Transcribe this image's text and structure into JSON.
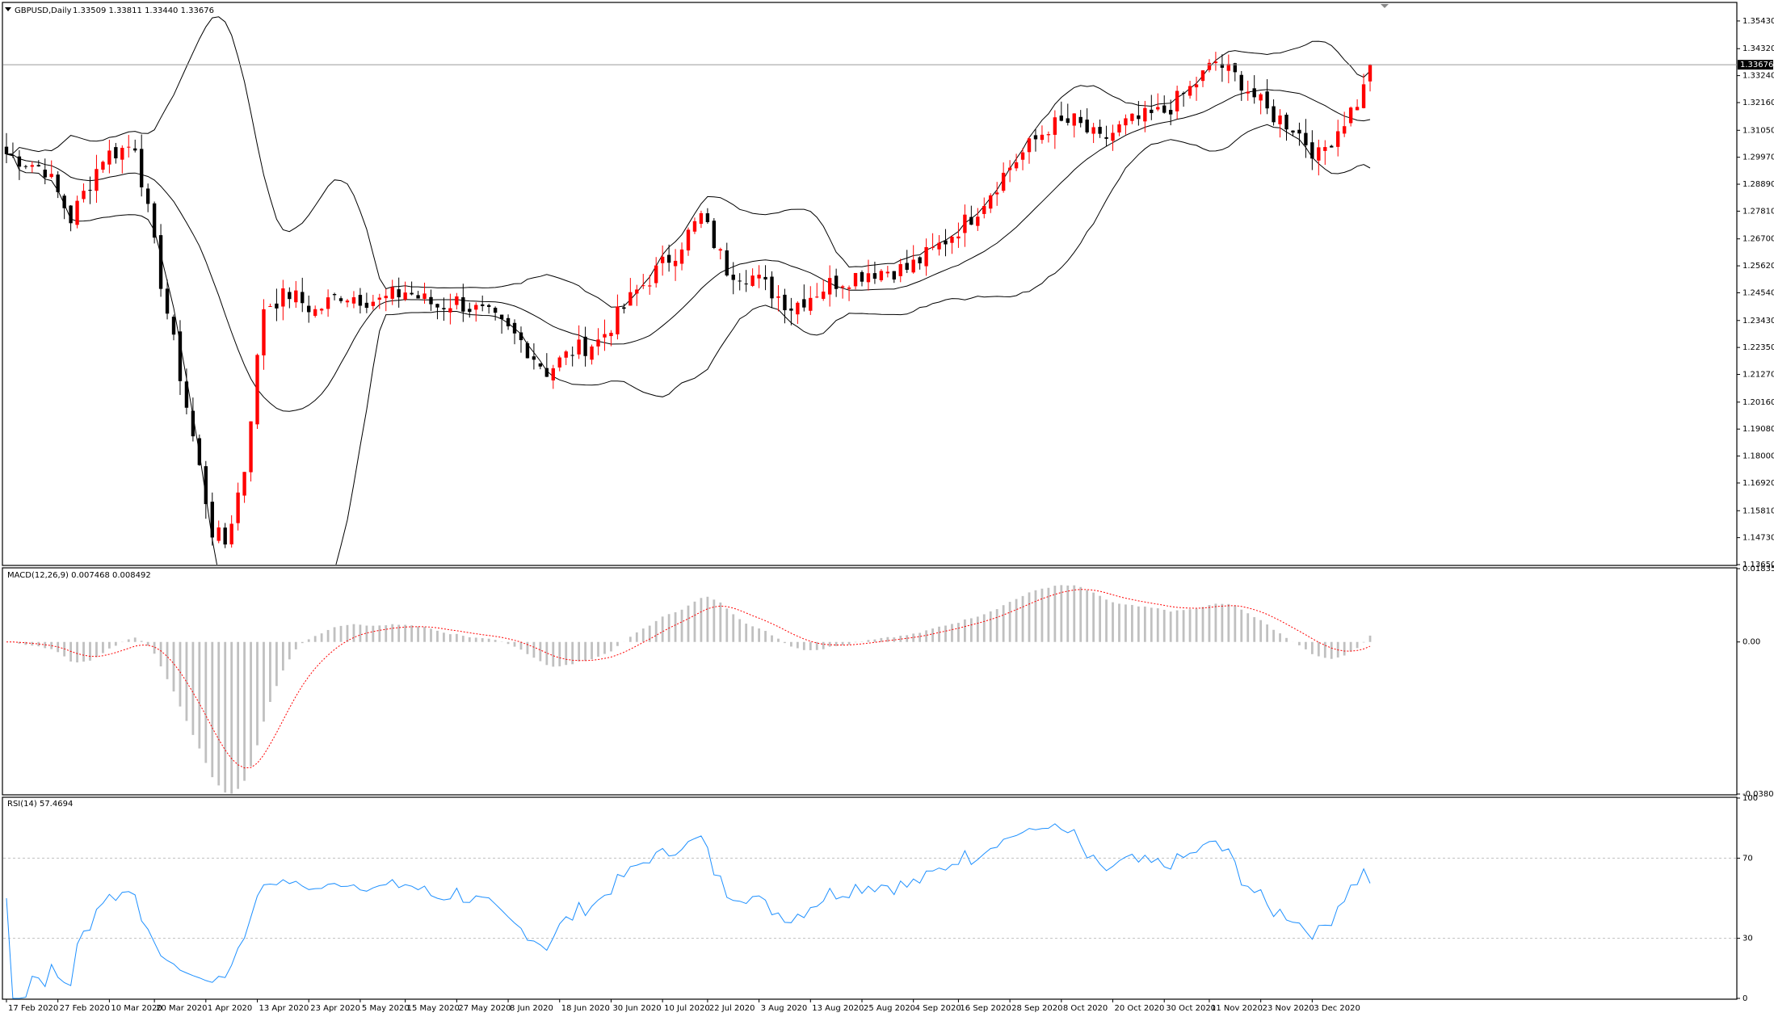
{
  "chart_data": [
    {
      "type": "candlestick",
      "title": "GBPUSD,Daily",
      "ohlc_header": "1.33509 1.33811 1.33440 1.33676",
      "current_price_label": "1.33676",
      "current_price": 1.33676,
      "ylim": [
        1.1365,
        1.3614
      ],
      "y_ticks": [
        "1.35430",
        "1.34320",
        "1.33240",
        "1.32160",
        "1.31050",
        "1.29970",
        "1.28890",
        "1.27810",
        "1.26700",
        "1.25620",
        "1.24540",
        "1.23430",
        "1.22350",
        "1.21270",
        "1.20160",
        "1.19080",
        "1.18000",
        "1.16920",
        "1.15810",
        "1.14730",
        "1.13650"
      ],
      "x_ticks": [
        "17 Feb 2020",
        "27 Feb 2020",
        "10 Mar 2020",
        "20 Mar 2020",
        "1 Apr 2020",
        "13 Apr 2020",
        "23 Apr 2020",
        "5 May 2020",
        "15 May 2020",
        "27 May 2020",
        "8 Jun 2020",
        "18 Jun 2020",
        "30 Jun 2020",
        "10 Jul 2020",
        "22 Jul 2020",
        "3 Aug 2020",
        "13 Aug 2020",
        "25 Aug 2020",
        "4 Sep 2020",
        "16 Sep 2020",
        "28 Sep 2020",
        "8 Oct 2020",
        "20 Oct 2020",
        "30 Oct 2020",
        "11 Nov 2020",
        "23 Nov 2020",
        "3 Dec 2020"
      ],
      "bars": 213,
      "close_waypoints": [
        [
          0,
          1.301
        ],
        [
          6,
          1.295
        ],
        [
          10,
          1.275
        ],
        [
          15,
          1.3
        ],
        [
          20,
          1.305
        ],
        [
          24,
          1.25
        ],
        [
          28,
          1.2
        ],
        [
          32,
          1.15
        ],
        [
          34,
          1.145
        ],
        [
          37,
          1.175
        ],
        [
          40,
          1.24
        ],
        [
          44,
          1.245
        ],
        [
          48,
          1.238
        ],
        [
          52,
          1.245
        ],
        [
          58,
          1.242
        ],
        [
          62,
          1.246
        ],
        [
          67,
          1.24
        ],
        [
          70,
          1.242
        ],
        [
          75,
          1.236
        ],
        [
          80,
          1.226
        ],
        [
          84,
          1.214
        ],
        [
          88,
          1.222
        ],
        [
          92,
          1.226
        ],
        [
          98,
          1.246
        ],
        [
          104,
          1.262
        ],
        [
          108,
          1.276
        ],
        [
          112,
          1.255
        ],
        [
          116,
          1.252
        ],
        [
          122,
          1.24
        ],
        [
          128,
          1.249
        ],
        [
          134,
          1.254
        ],
        [
          140,
          1.255
        ],
        [
          144,
          1.262
        ],
        [
          150,
          1.276
        ],
        [
          156,
          1.296
        ],
        [
          162,
          1.312
        ],
        [
          166,
          1.314
        ],
        [
          170,
          1.306
        ],
        [
          174,
          1.313
        ],
        [
          180,
          1.318
        ],
        [
          184,
          1.327
        ],
        [
          188,
          1.338
        ],
        [
          192,
          1.33
        ],
        [
          196,
          1.318
        ],
        [
          200,
          1.312
        ],
        [
          204,
          1.3
        ],
        [
          210,
          1.322
        ],
        [
          213,
          1.337
        ]
      ],
      "bollinger": {
        "period": 20,
        "deviations": 2,
        "upper_band": "visible",
        "lower_band": "visible",
        "middle_line": "visible"
      }
    },
    {
      "type": "histogram",
      "title": "MACD(12,26,9) 0.007468 0.008492",
      "y_ticks": [
        "0.018355",
        "0.00",
        "-0.03808"
      ],
      "ylim": [
        -0.03808,
        0.018355
      ],
      "histogram_color": "#c0c0c0",
      "signal_color": "#ff0000",
      "signal_style": "dotted"
    },
    {
      "type": "line",
      "title": "RSI(14) 57.4694",
      "y_ticks": [
        "100",
        "70",
        "30",
        "0"
      ],
      "ylim": [
        0,
        100
      ],
      "levels": [
        70,
        30
      ],
      "line_color": "#1e90ff"
    }
  ],
  "colors": {
    "up_candle": "#ff0000",
    "down_candle": "#000000",
    "band_line": "#000000",
    "grid_frame": "#000000"
  }
}
